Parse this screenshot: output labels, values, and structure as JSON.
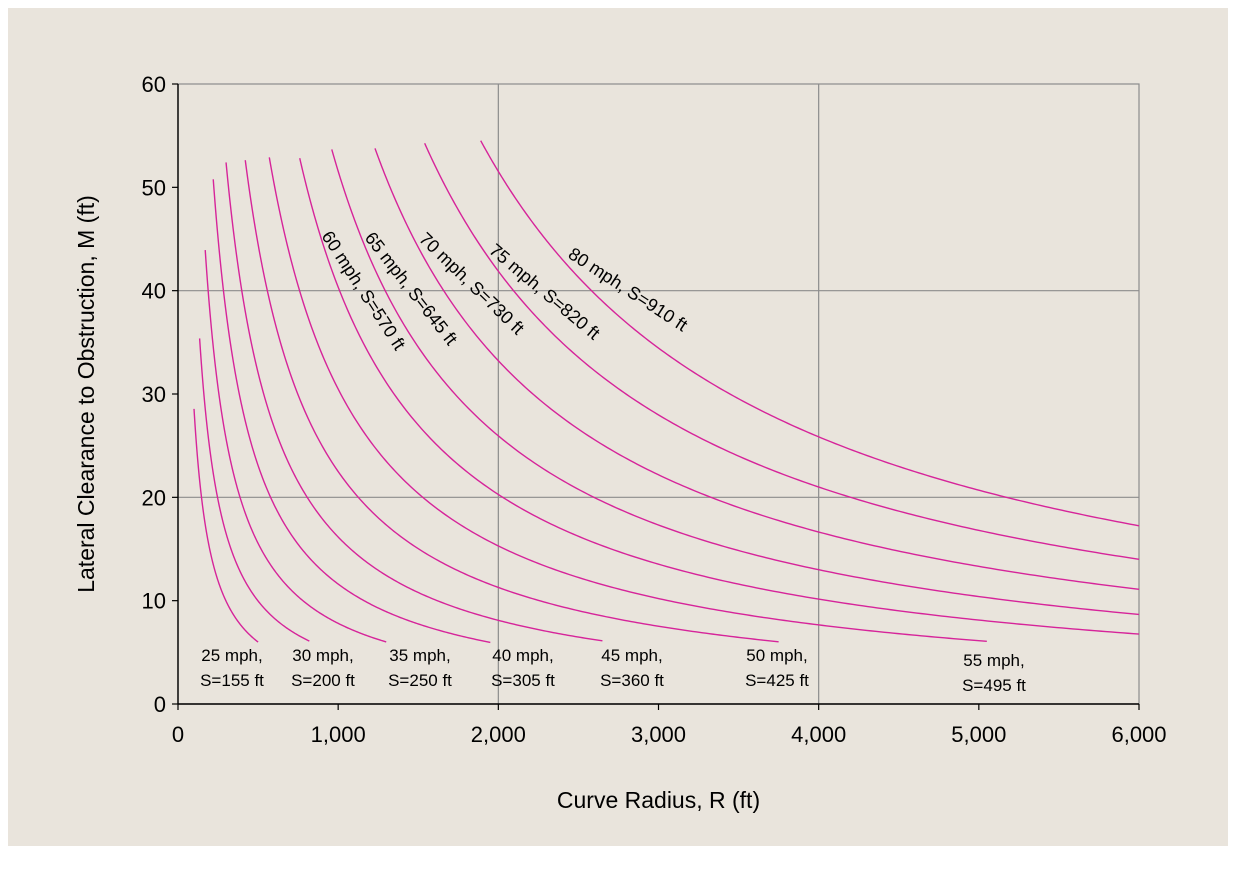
{
  "chart_data": {
    "type": "line",
    "title": "",
    "xlabel": "Curve Radius, R (ft)",
    "ylabel": "Lateral Clearance to Obstruction, M (ft)",
    "xlim": [
      0,
      6000
    ],
    "ylim": [
      0,
      60
    ],
    "x_ticks": [
      0,
      1000,
      2000,
      3000,
      4000,
      5000,
      6000
    ],
    "x_tick_labels": [
      "0",
      "1,000",
      "2,000",
      "3,000",
      "4,000",
      "5,000",
      "6,000"
    ],
    "y_ticks": [
      0,
      10,
      20,
      30,
      40,
      50,
      60
    ],
    "y_tick_labels": [
      "0",
      "10",
      "20",
      "30",
      "40",
      "50",
      "60"
    ],
    "grid": {
      "x_major": [
        2000,
        4000
      ],
      "y_major": [
        20,
        40
      ]
    },
    "legend": "none",
    "line_color": "#d6249a",
    "series": [
      {
        "speed_mph": 25,
        "sight_distance_ft": 155,
        "label_lines": [
          "25 mph,",
          "S=155 ft"
        ],
        "r_range": [
          100,
          500
        ]
      },
      {
        "speed_mph": 30,
        "sight_distance_ft": 200,
        "label_lines": [
          "30 mph,",
          "S=200 ft"
        ],
        "r_range": [
          135,
          820
        ]
      },
      {
        "speed_mph": 35,
        "sight_distance_ft": 250,
        "label_lines": [
          "35 mph,",
          "S=250 ft"
        ],
        "r_range": [
          170,
          1300
        ]
      },
      {
        "speed_mph": 40,
        "sight_distance_ft": 305,
        "label_lines": [
          "40 mph,",
          "S=305 ft"
        ],
        "r_range": [
          220,
          1950
        ]
      },
      {
        "speed_mph": 45,
        "sight_distance_ft": 360,
        "label_lines": [
          "45 mph,",
          "S=360 ft"
        ],
        "r_range": [
          300,
          2650
        ]
      },
      {
        "speed_mph": 50,
        "sight_distance_ft": 425,
        "label_lines": [
          "50 mph,",
          "S=425 ft"
        ],
        "r_range": [
          420,
          3750
        ]
      },
      {
        "speed_mph": 55,
        "sight_distance_ft": 495,
        "label_lines": [
          "55 mph,",
          "S=495 ft"
        ],
        "r_range": [
          570,
          5050
        ]
      },
      {
        "speed_mph": 60,
        "sight_distance_ft": 570,
        "label_lines": [
          "60 mph, S=570 ft"
        ],
        "r_range": [
          760,
          6000
        ]
      },
      {
        "speed_mph": 65,
        "sight_distance_ft": 645,
        "label_lines": [
          "65 mph, S=645 ft"
        ],
        "r_range": [
          960,
          6000
        ]
      },
      {
        "speed_mph": 70,
        "sight_distance_ft": 730,
        "label_lines": [
          "70 mph, S=730 ft"
        ],
        "r_range": [
          1230,
          6000
        ]
      },
      {
        "speed_mph": 75,
        "sight_distance_ft": 820,
        "label_lines": [
          "75 mph, S=820 ft"
        ],
        "r_range": [
          1540,
          6000
        ]
      },
      {
        "speed_mph": 80,
        "sight_distance_ft": 910,
        "label_lines": [
          "80 mph, S=910 ft"
        ],
        "r_range": [
          1890,
          6000
        ]
      }
    ]
  }
}
